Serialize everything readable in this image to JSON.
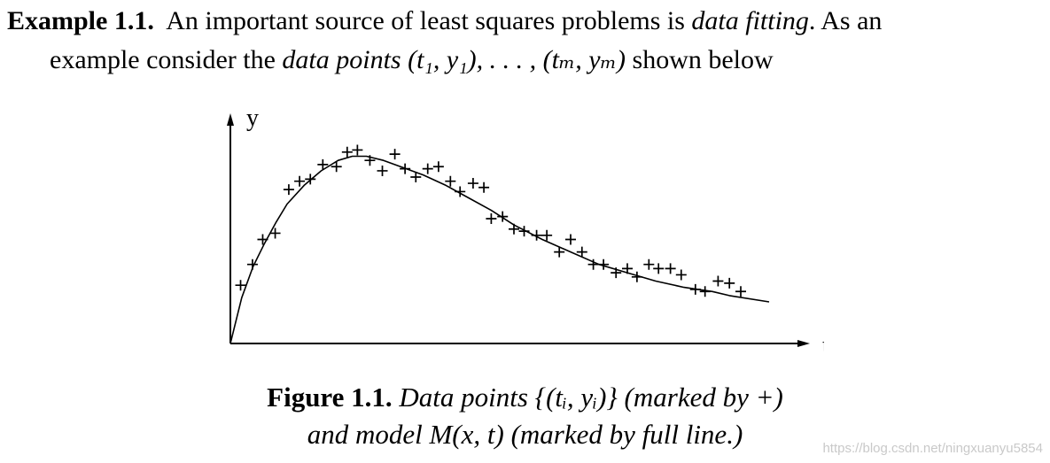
{
  "example": {
    "label": "Example 1.1.",
    "line1_text": "An important source of least squares problems is",
    "line1_em": "data fitting",
    "line1_tail": ". As an",
    "line2_text": "example consider the",
    "line2_em": "data points",
    "line2_math": "(t₁, y₁), . . . , (tₘ, yₘ)",
    "line2_tail": "shown below"
  },
  "figure": {
    "caption_label": "Figure 1.1.",
    "caption_line1": "Data points {(tᵢ, yᵢ)} (marked by +)",
    "caption_line2": "and model M(x, t) (marked by full line.)"
  },
  "watermark": "https://blog.csdn.net/ningxuanyu5854",
  "chart_data": {
    "type": "scatter",
    "xlabel": "t",
    "ylabel": "y",
    "marker": "+",
    "xlim": [
      0,
      1
    ],
    "ylim": [
      0,
      1
    ],
    "points": [
      {
        "x": 0.018,
        "y": 0.28
      },
      {
        "x": 0.039,
        "y": 0.38
      },
      {
        "x": 0.057,
        "y": 0.5
      },
      {
        "x": 0.079,
        "y": 0.53
      },
      {
        "x": 0.103,
        "y": 0.74
      },
      {
        "x": 0.122,
        "y": 0.78
      },
      {
        "x": 0.141,
        "y": 0.79
      },
      {
        "x": 0.163,
        "y": 0.86
      },
      {
        "x": 0.187,
        "y": 0.85
      },
      {
        "x": 0.206,
        "y": 0.92
      },
      {
        "x": 0.224,
        "y": 0.93
      },
      {
        "x": 0.246,
        "y": 0.88
      },
      {
        "x": 0.268,
        "y": 0.83
      },
      {
        "x": 0.29,
        "y": 0.91
      },
      {
        "x": 0.308,
        "y": 0.84
      },
      {
        "x": 0.327,
        "y": 0.8
      },
      {
        "x": 0.348,
        "y": 0.84
      },
      {
        "x": 0.367,
        "y": 0.85
      },
      {
        "x": 0.388,
        "y": 0.78
      },
      {
        "x": 0.405,
        "y": 0.73
      },
      {
        "x": 0.428,
        "y": 0.77
      },
      {
        "x": 0.447,
        "y": 0.75
      },
      {
        "x": 0.46,
        "y": 0.6
      },
      {
        "x": 0.48,
        "y": 0.61
      },
      {
        "x": 0.5,
        "y": 0.55
      },
      {
        "x": 0.518,
        "y": 0.54
      },
      {
        "x": 0.54,
        "y": 0.52
      },
      {
        "x": 0.558,
        "y": 0.52
      },
      {
        "x": 0.58,
        "y": 0.44
      },
      {
        "x": 0.6,
        "y": 0.5
      },
      {
        "x": 0.62,
        "y": 0.44
      },
      {
        "x": 0.64,
        "y": 0.38
      },
      {
        "x": 0.658,
        "y": 0.38
      },
      {
        "x": 0.68,
        "y": 0.34
      },
      {
        "x": 0.7,
        "y": 0.36
      },
      {
        "x": 0.717,
        "y": 0.32
      },
      {
        "x": 0.738,
        "y": 0.38
      },
      {
        "x": 0.755,
        "y": 0.36
      },
      {
        "x": 0.776,
        "y": 0.36
      },
      {
        "x": 0.795,
        "y": 0.33
      },
      {
        "x": 0.82,
        "y": 0.26
      },
      {
        "x": 0.837,
        "y": 0.25
      },
      {
        "x": 0.86,
        "y": 0.3
      },
      {
        "x": 0.88,
        "y": 0.29
      },
      {
        "x": 0.9,
        "y": 0.25
      }
    ],
    "model_curve": [
      {
        "x": 0.0,
        "y": 0.0
      },
      {
        "x": 0.02,
        "y": 0.22
      },
      {
        "x": 0.04,
        "y": 0.37
      },
      {
        "x": 0.06,
        "y": 0.48
      },
      {
        "x": 0.08,
        "y": 0.58
      },
      {
        "x": 0.1,
        "y": 0.67
      },
      {
        "x": 0.13,
        "y": 0.76
      },
      {
        "x": 0.16,
        "y": 0.83
      },
      {
        "x": 0.19,
        "y": 0.88
      },
      {
        "x": 0.215,
        "y": 0.9
      },
      {
        "x": 0.24,
        "y": 0.9
      },
      {
        "x": 0.27,
        "y": 0.88
      },
      {
        "x": 0.3,
        "y": 0.85
      },
      {
        "x": 0.34,
        "y": 0.81
      },
      {
        "x": 0.38,
        "y": 0.76
      },
      {
        "x": 0.42,
        "y": 0.7
      },
      {
        "x": 0.46,
        "y": 0.64
      },
      {
        "x": 0.5,
        "y": 0.57
      },
      {
        "x": 0.55,
        "y": 0.5
      },
      {
        "x": 0.6,
        "y": 0.44
      },
      {
        "x": 0.65,
        "y": 0.38
      },
      {
        "x": 0.7,
        "y": 0.34
      },
      {
        "x": 0.75,
        "y": 0.3
      },
      {
        "x": 0.8,
        "y": 0.27
      },
      {
        "x": 0.85,
        "y": 0.25
      },
      {
        "x": 0.88,
        "y": 0.23
      },
      {
        "x": 0.95,
        "y": 0.2
      }
    ]
  }
}
